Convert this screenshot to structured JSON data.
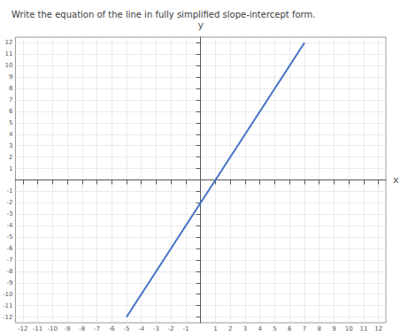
{
  "chart_data": {
    "type": "line",
    "title": "Write the equation of the line in fully simplified slope-intercept form.",
    "x": [
      -5,
      7
    ],
    "values": [
      -12,
      12
    ],
    "color": "#4472C4",
    "xlabel": "x",
    "ylabel": "y",
    "xlim": [
      -12.5,
      12.5
    ],
    "ylim": [
      -12.5,
      12.5
    ],
    "xticks": [
      -12,
      -11,
      -10,
      -9,
      -8,
      -7,
      -6,
      -5,
      -4,
      -3,
      -2,
      -1,
      1,
      2,
      3,
      4,
      5,
      6,
      7,
      8,
      9,
      10,
      11,
      12
    ],
    "yticks": [
      -12,
      -11,
      -10,
      -9,
      -8,
      -7,
      -6,
      -5,
      -4,
      -3,
      -2,
      -1,
      1,
      2,
      3,
      4,
      5,
      6,
      7,
      8,
      9,
      10,
      11,
      12
    ],
    "grid": true
  }
}
